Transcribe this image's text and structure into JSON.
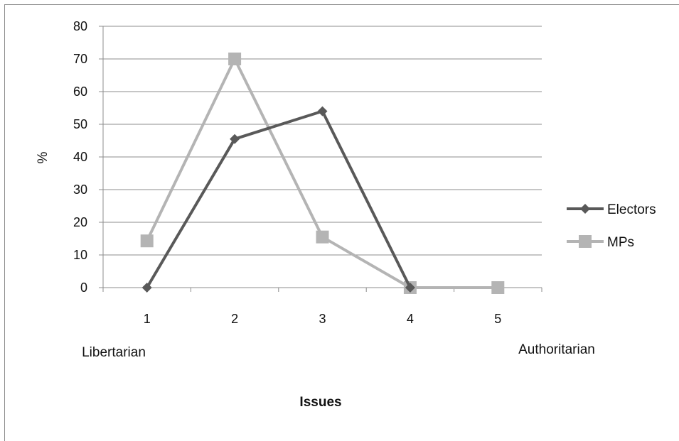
{
  "chart_data": {
    "type": "line",
    "categories": [
      "1",
      "2",
      "3",
      "4",
      "5"
    ],
    "category_annotations": [
      {
        "category": "1",
        "text": "Libertarian"
      },
      {
        "category": "5",
        "text": "Authoritarian"
      }
    ],
    "xlabel": "Issues",
    "ylabel": "%",
    "ylim": [
      0,
      80
    ],
    "yticks": [
      0,
      10,
      20,
      30,
      40,
      50,
      60,
      70,
      80
    ],
    "grid": true,
    "legend_position": "right",
    "series": [
      {
        "name": "Electors",
        "values": [
          0,
          45.5,
          54,
          0,
          null
        ],
        "color": "#595959",
        "marker": "diamond"
      },
      {
        "name": "MPs",
        "values": [
          14.3,
          70,
          15.5,
          0,
          0
        ],
        "color": "#b4b4b4",
        "marker": "square"
      }
    ]
  }
}
